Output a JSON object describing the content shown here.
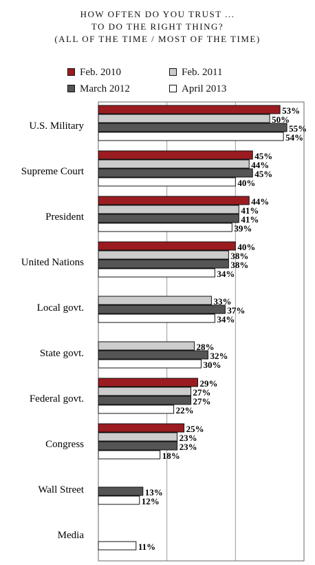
{
  "chart_data": {
    "type": "bar",
    "orientation": "horizontal",
    "title": [
      "HOW OFTEN DO YOU TRUST ...",
      "TO DO THE RIGHT THING?",
      "(ALL OF THE TIME / MOST OF THE TIME)"
    ],
    "categories": [
      "U.S. Military",
      "Supreme Court",
      "President",
      "United Nations",
      "Local govt.",
      "State govt.",
      "Federal govt.",
      "Congress",
      "Wall Street",
      "Media"
    ],
    "series": [
      {
        "name": "Feb. 2010",
        "color": "#9b1c20",
        "values": [
          53,
          45,
          44,
          40,
          null,
          null,
          29,
          25,
          null,
          null
        ]
      },
      {
        "name": "Feb. 2011",
        "color": "#cccccc",
        "values": [
          50,
          44,
          41,
          38,
          33,
          28,
          27,
          23,
          null,
          null
        ]
      },
      {
        "name": "March 2012",
        "color": "#555555",
        "values": [
          55,
          45,
          41,
          38,
          37,
          32,
          27,
          23,
          13,
          null
        ]
      },
      {
        "name": "April 2013",
        "color": "#ffffff",
        "values": [
          54,
          40,
          39,
          34,
          34,
          30,
          22,
          18,
          12,
          11
        ]
      }
    ],
    "value_suffix": "%",
    "xlim": [
      0,
      60
    ],
    "grid": true,
    "legend_position": "top"
  }
}
